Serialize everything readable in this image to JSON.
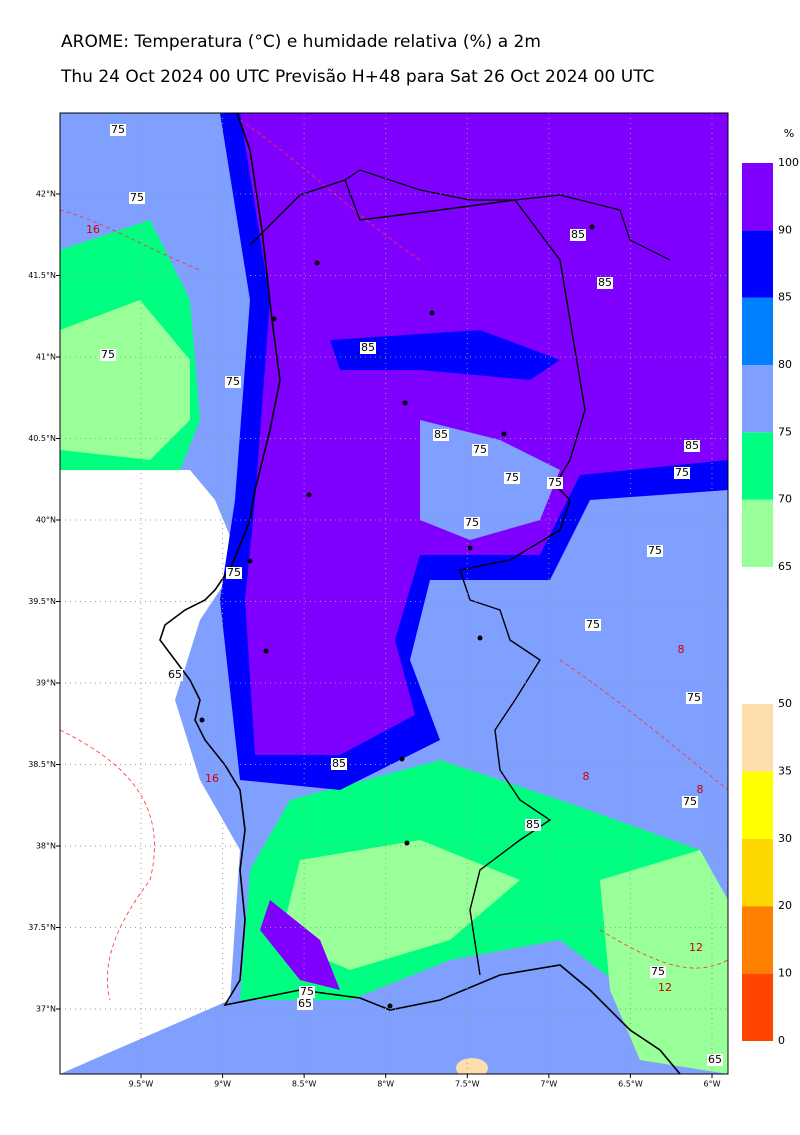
{
  "header": {
    "title": "AROME: Temperatura (°C) e humidade relativa (%) a 2m",
    "subtitle": "Thu 24 Oct 2024 00 UTC Previsão H+48 para Sat 26 Oct 2024 00 UTC"
  },
  "map": {
    "lon_ticks": [
      {
        "value": -9.5,
        "label": "9.5°W"
      },
      {
        "value": -9,
        "label": "9°W"
      },
      {
        "value": -8.5,
        "label": "8.5°W"
      },
      {
        "value": -8,
        "label": "8°W"
      },
      {
        "value": -7.5,
        "label": "7.5°W"
      },
      {
        "value": -7,
        "label": "7°W"
      },
      {
        "value": -6.5,
        "label": "6.5°W"
      },
      {
        "value": -6,
        "label": "6°W"
      }
    ],
    "lat_ticks": [
      {
        "value": 42,
        "label": "42°N"
      },
      {
        "value": 41.5,
        "label": "41.5°N"
      },
      {
        "value": 41,
        "label": "41°N"
      },
      {
        "value": 40.5,
        "label": "40.5°N"
      },
      {
        "value": 40,
        "label": "40°N"
      },
      {
        "value": 39.5,
        "label": "39.5°N"
      },
      {
        "value": 39,
        "label": "39°N"
      },
      {
        "value": 38.5,
        "label": "38.5°N"
      },
      {
        "value": 38,
        "label": "38°N"
      },
      {
        "value": 37.5,
        "label": "37.5°N"
      },
      {
        "value": 37,
        "label": "37°N"
      }
    ],
    "contour_labels": [
      {
        "value": 75,
        "color": "#000000"
      },
      {
        "value": 75,
        "color": "#000000"
      },
      {
        "value": 16,
        "color": "#cc0000"
      },
      {
        "value": 85,
        "color": "#000000"
      },
      {
        "value": 85,
        "color": "#000000"
      },
      {
        "value": 85,
        "color": "#000000"
      },
      {
        "value": 75,
        "color": "#000000"
      },
      {
        "value": 75,
        "color": "#000000"
      },
      {
        "value": 85,
        "color": "#000000"
      },
      {
        "value": 75,
        "color": "#000000"
      },
      {
        "value": 85,
        "color": "#000000"
      },
      {
        "value": 75,
        "color": "#000000"
      },
      {
        "value": 75,
        "color": "#000000"
      },
      {
        "value": 75,
        "color": "#000000"
      },
      {
        "value": 75,
        "color": "#000000"
      },
      {
        "value": 75,
        "color": "#000000"
      },
      {
        "value": 75,
        "color": "#000000"
      },
      {
        "value": 75,
        "color": "#000000"
      },
      {
        "value": 8,
        "color": "#cc0000"
      },
      {
        "value": 65,
        "color": "#000000"
      },
      {
        "value": 75,
        "color": "#000000"
      },
      {
        "value": 16,
        "color": "#cc0000"
      },
      {
        "value": 85,
        "color": "#000000"
      },
      {
        "value": 8,
        "color": "#cc0000"
      },
      {
        "value": 8,
        "color": "#cc0000"
      },
      {
        "value": 75,
        "color": "#000000"
      },
      {
        "value": 85,
        "color": "#000000"
      },
      {
        "value": 12,
        "color": "#cc0000"
      },
      {
        "value": 75,
        "color": "#000000"
      },
      {
        "value": 12,
        "color": "#cc0000"
      },
      {
        "value": 75,
        "color": "#000000"
      },
      {
        "value": 65,
        "color": "#000000"
      },
      {
        "value": 65,
        "color": "#000000"
      }
    ]
  },
  "humidity_bar": {
    "unit": "%",
    "levels": [
      65,
      70,
      75,
      80,
      85,
      90,
      100
    ],
    "colors": [
      "#99ff99",
      "#00ff80",
      "#80a0ff",
      "#0080ff",
      "#0000ff",
      "#8000ff"
    ]
  },
  "temperature_bar": {
    "levels": [
      0,
      10,
      20,
      30,
      35,
      50
    ],
    "colors": [
      "#ff4500",
      "#ff8000",
      "#ffd700",
      "#ffff00",
      "#ffdead"
    ]
  }
}
